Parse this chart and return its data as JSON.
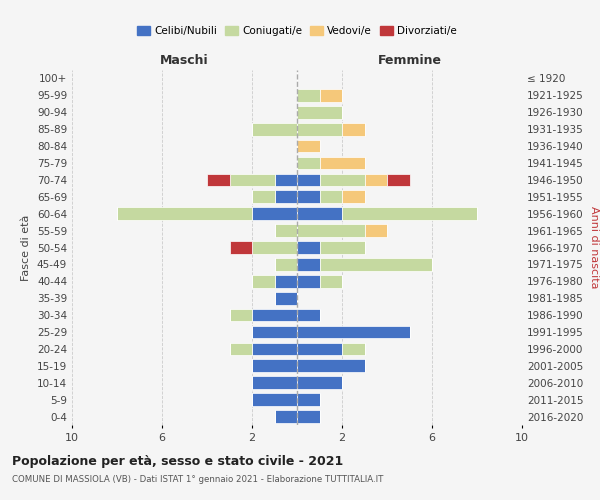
{
  "age_groups": [
    "0-4",
    "5-9",
    "10-14",
    "15-19",
    "20-24",
    "25-29",
    "30-34",
    "35-39",
    "40-44",
    "45-49",
    "50-54",
    "55-59",
    "60-64",
    "65-69",
    "70-74",
    "75-79",
    "80-84",
    "85-89",
    "90-94",
    "95-99",
    "100+"
  ],
  "birth_years": [
    "2016-2020",
    "2011-2015",
    "2006-2010",
    "2001-2005",
    "1996-2000",
    "1991-1995",
    "1986-1990",
    "1981-1985",
    "1976-1980",
    "1971-1975",
    "1966-1970",
    "1961-1965",
    "1956-1960",
    "1951-1955",
    "1946-1950",
    "1941-1945",
    "1936-1940",
    "1931-1935",
    "1926-1930",
    "1921-1925",
    "≤ 1920"
  ],
  "colors": {
    "celibe": "#4472C4",
    "coniugato": "#C5D9A0",
    "vedovo": "#F5C87A",
    "divorziato": "#C0373A"
  },
  "male": {
    "celibe": [
      1,
      2,
      2,
      2,
      2,
      2,
      2,
      1,
      1,
      0,
      0,
      0,
      2,
      1,
      1,
      0,
      0,
      0,
      0,
      0,
      0
    ],
    "coniugato": [
      0,
      0,
      0,
      0,
      1,
      0,
      1,
      0,
      1,
      1,
      2,
      1,
      6,
      1,
      2,
      0,
      0,
      2,
      0,
      0,
      0
    ],
    "vedovo": [
      0,
      0,
      0,
      0,
      0,
      0,
      0,
      0,
      0,
      0,
      0,
      0,
      0,
      0,
      0,
      0,
      0,
      0,
      0,
      0,
      0
    ],
    "divorziato": [
      0,
      0,
      0,
      0,
      0,
      0,
      0,
      0,
      0,
      0,
      1,
      0,
      0,
      0,
      1,
      0,
      0,
      0,
      0,
      0,
      0
    ]
  },
  "female": {
    "celibe": [
      1,
      1,
      2,
      3,
      2,
      5,
      1,
      0,
      1,
      1,
      1,
      0,
      2,
      1,
      1,
      0,
      0,
      0,
      0,
      0,
      0
    ],
    "coniugato": [
      0,
      0,
      0,
      0,
      1,
      0,
      0,
      0,
      1,
      5,
      2,
      3,
      6,
      1,
      2,
      1,
      0,
      2,
      2,
      1,
      0
    ],
    "vedovo": [
      0,
      0,
      0,
      0,
      0,
      0,
      0,
      0,
      0,
      0,
      0,
      1,
      0,
      1,
      1,
      2,
      1,
      1,
      0,
      1,
      0
    ],
    "divorziato": [
      0,
      0,
      0,
      0,
      0,
      0,
      0,
      0,
      0,
      0,
      0,
      0,
      0,
      0,
      1,
      0,
      0,
      0,
      0,
      0,
      0
    ]
  },
  "title": "Popolazione per età, sesso e stato civile - 2021",
  "subtitle": "COMUNE DI MASSIOLA (VB) - Dati ISTAT 1° gennaio 2021 - Elaborazione TUTTITALIA.IT",
  "xlabel_left": "Maschi",
  "xlabel_right": "Femmine",
  "ylabel_left": "Fasce di età",
  "ylabel_right": "Anni di nascita",
  "legend_labels": [
    "Celibi/Nubili",
    "Coniugati/e",
    "Vedovi/e",
    "Divorziati/e"
  ],
  "xlim": 10,
  "background_color": "#f5f5f5",
  "grid_color": "#cccccc"
}
